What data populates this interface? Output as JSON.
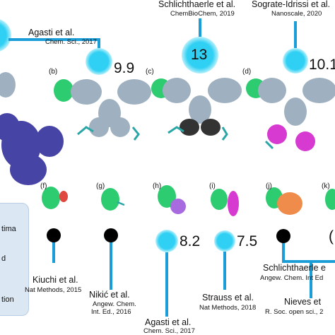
{
  "colors": {
    "accent_line": "#1b9ed8",
    "circle_glow": "#2fd0f3",
    "antibody": "#9fb1c0",
    "green_protein": "#2ecc71",
    "dark_blue": "#3d3aa0",
    "dye_dark": "#333333",
    "dye_magenta": "#d63ad0",
    "dye_red": "#e0473e",
    "dye_purple": "#a86adf",
    "dye_orange": "#ef8b4b"
  },
  "top": {
    "agasti": {
      "author": "Agasti et al.",
      "journal": "Chem. Sci., 2017",
      "value": "9.9"
    },
    "schlichthaerle": {
      "author": "Schlichthaerle et al.",
      "journal": "ChemBioChem, 2019",
      "value": "13"
    },
    "sograte": {
      "author": "Sograte-Idrissi et al.",
      "journal": "Nanoscale, 2020",
      "value": "10.1"
    }
  },
  "panels": {
    "b": "(b)",
    "c": "(c)",
    "d": "(d)",
    "f": "(f)",
    "g": "(g)",
    "h": "(h)",
    "i": "(i)",
    "j": "(j)",
    "k": "(k)"
  },
  "bottom": {
    "kiuchi": {
      "author": "Kiuchi et al.",
      "journal": "Nat Methods, 2015"
    },
    "nikic": {
      "author": "Nikić et al.",
      "journal1": "Angew. Chem.",
      "journal2": "Int. Ed., 2016"
    },
    "agasti2": {
      "author": "Agasti et al.",
      "journal": "Chem. Sci., 2017",
      "value": "8.2"
    },
    "strauss": {
      "author": "Strauss et al.",
      "journal": "Nat Methods, 2018",
      "value": "7.5"
    },
    "schlichthaerle2": {
      "author": "Schlichthaerle e",
      "journal": "Angew. Chem. Int Ed",
      "value": "("
    },
    "nieves": {
      "author": "Nieves et",
      "journal": "R. Soc. open sci., 2"
    }
  },
  "legend": {
    "items": [
      "tima",
      "d",
      "tion"
    ]
  }
}
